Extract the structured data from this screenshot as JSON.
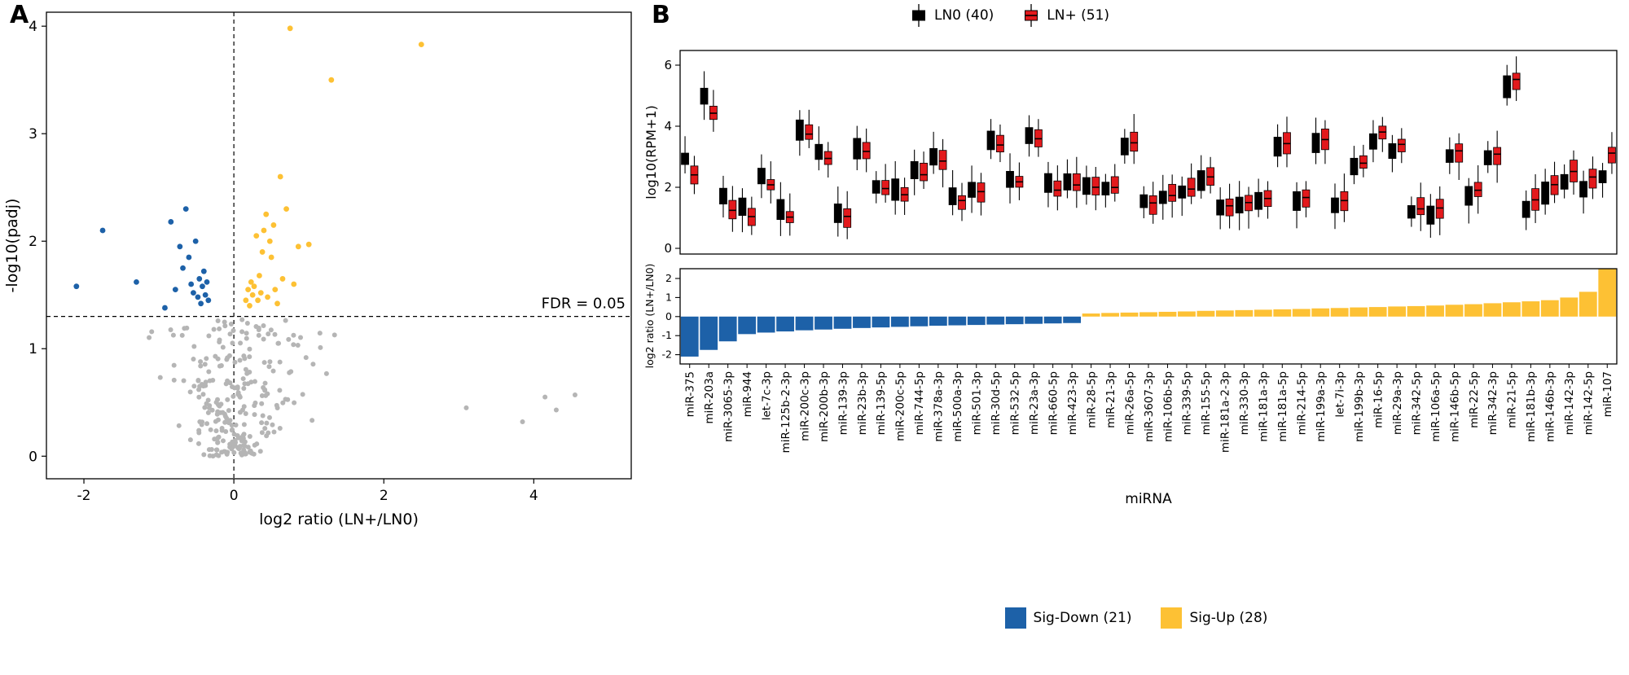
{
  "panel_a": {
    "label": "A"
  },
  "panel_b": {
    "label": "B"
  },
  "colors": {
    "sig_down": "#1d61a8",
    "sig_up": "#fdc134",
    "nonsig": "#b5b5b5",
    "ln0": "#000000",
    "ln_plus": "#e3191c"
  },
  "chart_data": [
    {
      "id": "volcano",
      "type": "scatter",
      "xlabel": "log2 ratio (LN+/LN0)",
      "ylabel": "-log10(padj)",
      "xlim": [
        -2.5,
        5.3
      ],
      "ylim": [
        -0.21,
        4.13
      ],
      "x_ticks": [
        -2,
        0,
        2,
        4
      ],
      "y_ticks": [
        0,
        1,
        2,
        3,
        4
      ],
      "hline": {
        "y": 1.3,
        "style": "dashed",
        "label": "FDR = 0.05"
      },
      "vline": {
        "x": 0,
        "style": "dashed"
      },
      "grid": false,
      "legend_position": "none",
      "sig_points_source": "chart_data[2].mirnas (x = log2_ratio, y = neg_log10_padj, color by sign)",
      "nonsig_outlier_points": [
        [
          3.1,
          0.45
        ],
        [
          3.85,
          0.32
        ],
        [
          4.15,
          0.55
        ],
        [
          4.3,
          0.43
        ],
        [
          4.55,
          0.57
        ]
      ],
      "nonsig_cloud": {
        "count": 260,
        "seed": 17,
        "x_range": [
          -1.2,
          1.6
        ],
        "y_range": [
          0,
          1.27
        ]
      }
    },
    {
      "id": "expression_boxplots",
      "type": "boxplot",
      "ylabel": "log10(RPM+1)",
      "y_ticks": [
        0,
        2,
        4,
        6
      ],
      "ylim": [
        0,
        6.45
      ],
      "grid": false,
      "legend_position": "top",
      "groups": [
        {
          "name": "LN0 (40)",
          "color": "#000000"
        },
        {
          "name": "LN+ (51)",
          "color": "#e3191c"
        }
      ],
      "values_note": "LN0 median per miRNA = chart_data[2].mirnas[i].ln0_median_log10rpm; LN+ median = LN0 median + 0.301 x log2_ratio"
    },
    {
      "id": "ratio_bars",
      "type": "bar",
      "xlabel": "miRNA",
      "ylabel": "log2 ratio (LN+/LN0)",
      "y_ticks": [
        -2,
        -1,
        0,
        1,
        2
      ],
      "ylim": [
        -2.49,
        2.51
      ],
      "grid": false,
      "legend_position": "bottom",
      "legend": [
        {
          "label": "Sig-Down (21)",
          "color": "#1d61a8"
        },
        {
          "label": "Sig-Up (28)",
          "color": "#fdc134"
        }
      ],
      "mirnas": [
        {
          "name": "miR-375",
          "log2_ratio": -2.1,
          "neg_log10_padj": 1.58,
          "ln0_median_log10rpm": 3.0
        },
        {
          "name": "miR-203a",
          "log2_ratio": -1.75,
          "neg_log10_padj": 2.1,
          "ln0_median_log10rpm": 5.0
        },
        {
          "name": "miR-3065-3p",
          "log2_ratio": -1.3,
          "neg_log10_padj": 1.62,
          "ln0_median_log10rpm": 1.6
        },
        {
          "name": "miR-944",
          "log2_ratio": -0.92,
          "neg_log10_padj": 1.38,
          "ln0_median_log10rpm": 1.3
        },
        {
          "name": "let-7c-3p",
          "log2_ratio": -0.84,
          "neg_log10_padj": 2.18,
          "ln0_median_log10rpm": 2.3
        },
        {
          "name": "miR-125b-2-3p",
          "log2_ratio": -0.78,
          "neg_log10_padj": 1.55,
          "ln0_median_log10rpm": 1.25
        },
        {
          "name": "miR-200c-3p",
          "log2_ratio": -0.72,
          "neg_log10_padj": 1.95,
          "ln0_median_log10rpm": 3.9
        },
        {
          "name": "miR-200b-3p",
          "log2_ratio": -0.68,
          "neg_log10_padj": 1.75,
          "ln0_median_log10rpm": 3.1
        },
        {
          "name": "miR-139-3p",
          "log2_ratio": -0.64,
          "neg_log10_padj": 2.3,
          "ln0_median_log10rpm": 1.2
        },
        {
          "name": "miR-23b-3p",
          "log2_ratio": -0.6,
          "neg_log10_padj": 1.85,
          "ln0_median_log10rpm": 3.3
        },
        {
          "name": "miR-139-5p",
          "log2_ratio": -0.57,
          "neg_log10_padj": 1.6,
          "ln0_median_log10rpm": 2.1
        },
        {
          "name": "miR-200c-5p",
          "log2_ratio": -0.54,
          "neg_log10_padj": 1.52,
          "ln0_median_log10rpm": 1.9
        },
        {
          "name": "miR-744-5p",
          "log2_ratio": -0.51,
          "neg_log10_padj": 2.0,
          "ln0_median_log10rpm": 2.6
        },
        {
          "name": "miR-378a-3p",
          "log2_ratio": -0.48,
          "neg_log10_padj": 1.48,
          "ln0_median_log10rpm": 2.95
        },
        {
          "name": "miR-500a-3p",
          "log2_ratio": -0.46,
          "neg_log10_padj": 1.65,
          "ln0_median_log10rpm": 1.75
        },
        {
          "name": "miR-501-3p",
          "log2_ratio": -0.44,
          "neg_log10_padj": 1.42,
          "ln0_median_log10rpm": 1.95
        },
        {
          "name": "miR-30d-5p",
          "log2_ratio": -0.42,
          "neg_log10_padj": 1.58,
          "ln0_median_log10rpm": 3.55
        },
        {
          "name": "miR-532-5p",
          "log2_ratio": -0.4,
          "neg_log10_padj": 1.72,
          "ln0_median_log10rpm": 2.35
        },
        {
          "name": "miR-23a-3p",
          "log2_ratio": -0.38,
          "neg_log10_padj": 1.5,
          "ln0_median_log10rpm": 3.65
        },
        {
          "name": "miR-660-5p",
          "log2_ratio": -0.36,
          "neg_log10_padj": 1.62,
          "ln0_median_log10rpm": 2.05
        },
        {
          "name": "miR-423-3p",
          "log2_ratio": -0.34,
          "neg_log10_padj": 1.45,
          "ln0_median_log10rpm": 2.15
        },
        {
          "name": "miR-28-5p",
          "log2_ratio": 0.16,
          "neg_log10_padj": 1.45,
          "ln0_median_log10rpm": 2.0
        },
        {
          "name": "miR-21-3p",
          "log2_ratio": 0.19,
          "neg_log10_padj": 1.55,
          "ln0_median_log10rpm": 1.95
        },
        {
          "name": "miR-26a-5p",
          "log2_ratio": 0.21,
          "neg_log10_padj": 1.4,
          "ln0_median_log10rpm": 3.35
        },
        {
          "name": "miR-3607-3p",
          "log2_ratio": 0.23,
          "neg_log10_padj": 1.62,
          "ln0_median_log10rpm": 1.45
        },
        {
          "name": "miR-106b-5p",
          "log2_ratio": 0.25,
          "neg_log10_padj": 1.5,
          "ln0_median_log10rpm": 1.65
        },
        {
          "name": "miR-339-5p",
          "log2_ratio": 0.27,
          "neg_log10_padj": 1.58,
          "ln0_median_log10rpm": 1.85
        },
        {
          "name": "miR-155-5p",
          "log2_ratio": 0.3,
          "neg_log10_padj": 2.05,
          "ln0_median_log10rpm": 2.25
        },
        {
          "name": "miR-181a-2-3p",
          "log2_ratio": 0.32,
          "neg_log10_padj": 1.45,
          "ln0_median_log10rpm": 1.35
        },
        {
          "name": "miR-330-3p",
          "log2_ratio": 0.34,
          "neg_log10_padj": 1.68,
          "ln0_median_log10rpm": 1.45
        },
        {
          "name": "miR-181a-3p",
          "log2_ratio": 0.36,
          "neg_log10_padj": 1.52,
          "ln0_median_log10rpm": 1.55
        },
        {
          "name": "miR-181a-5p",
          "log2_ratio": 0.38,
          "neg_log10_padj": 1.9,
          "ln0_median_log10rpm": 3.3
        },
        {
          "name": "miR-214-5p",
          "log2_ratio": 0.4,
          "neg_log10_padj": 2.1,
          "ln0_median_log10rpm": 1.6
        },
        {
          "name": "miR-199a-3p",
          "log2_ratio": 0.43,
          "neg_log10_padj": 2.25,
          "ln0_median_log10rpm": 3.45
        },
        {
          "name": "let-7i-3p",
          "log2_ratio": 0.45,
          "neg_log10_padj": 1.48,
          "ln0_median_log10rpm": 1.4
        },
        {
          "name": "miR-199b-3p",
          "log2_ratio": 0.48,
          "neg_log10_padj": 2.0,
          "ln0_median_log10rpm": 2.7
        },
        {
          "name": "miR-16-5p",
          "log2_ratio": 0.5,
          "neg_log10_padj": 1.85,
          "ln0_median_log10rpm": 3.6
        },
        {
          "name": "miR-29a-3p",
          "log2_ratio": 0.53,
          "neg_log10_padj": 2.15,
          "ln0_median_log10rpm": 3.3
        },
        {
          "name": "miR-342-5p",
          "log2_ratio": 0.55,
          "neg_log10_padj": 1.55,
          "ln0_median_log10rpm": 1.15
        },
        {
          "name": "miR-106a-5p",
          "log2_ratio": 0.58,
          "neg_log10_padj": 1.42,
          "ln0_median_log10rpm": 1.1
        },
        {
          "name": "miR-146b-5p",
          "log2_ratio": 0.62,
          "neg_log10_padj": 2.6,
          "ln0_median_log10rpm": 3.05
        },
        {
          "name": "miR-22-5p",
          "log2_ratio": 0.65,
          "neg_log10_padj": 1.65,
          "ln0_median_log10rpm": 1.7
        },
        {
          "name": "miR-342-3p",
          "log2_ratio": 0.7,
          "neg_log10_padj": 2.3,
          "ln0_median_log10rpm": 2.9
        },
        {
          "name": "miR-21-5p",
          "log2_ratio": 0.75,
          "neg_log10_padj": 3.98,
          "ln0_median_log10rpm": 5.3
        },
        {
          "name": "miR-181b-3p",
          "log2_ratio": 0.8,
          "neg_log10_padj": 1.6,
          "ln0_median_log10rpm": 1.35
        },
        {
          "name": "miR-146b-3p",
          "log2_ratio": 0.86,
          "neg_log10_padj": 1.95,
          "ln0_median_log10rpm": 1.8
        },
        {
          "name": "miR-142-3p",
          "log2_ratio": 1.0,
          "neg_log10_padj": 1.97,
          "ln0_median_log10rpm": 2.2
        },
        {
          "name": "miR-142-5p",
          "log2_ratio": 1.3,
          "neg_log10_padj": 3.5,
          "ln0_median_log10rpm": 1.95
        },
        {
          "name": "miR-107",
          "log2_ratio": 2.5,
          "neg_log10_padj": 3.83,
          "ln0_median_log10rpm": 2.4
        }
      ]
    }
  ]
}
